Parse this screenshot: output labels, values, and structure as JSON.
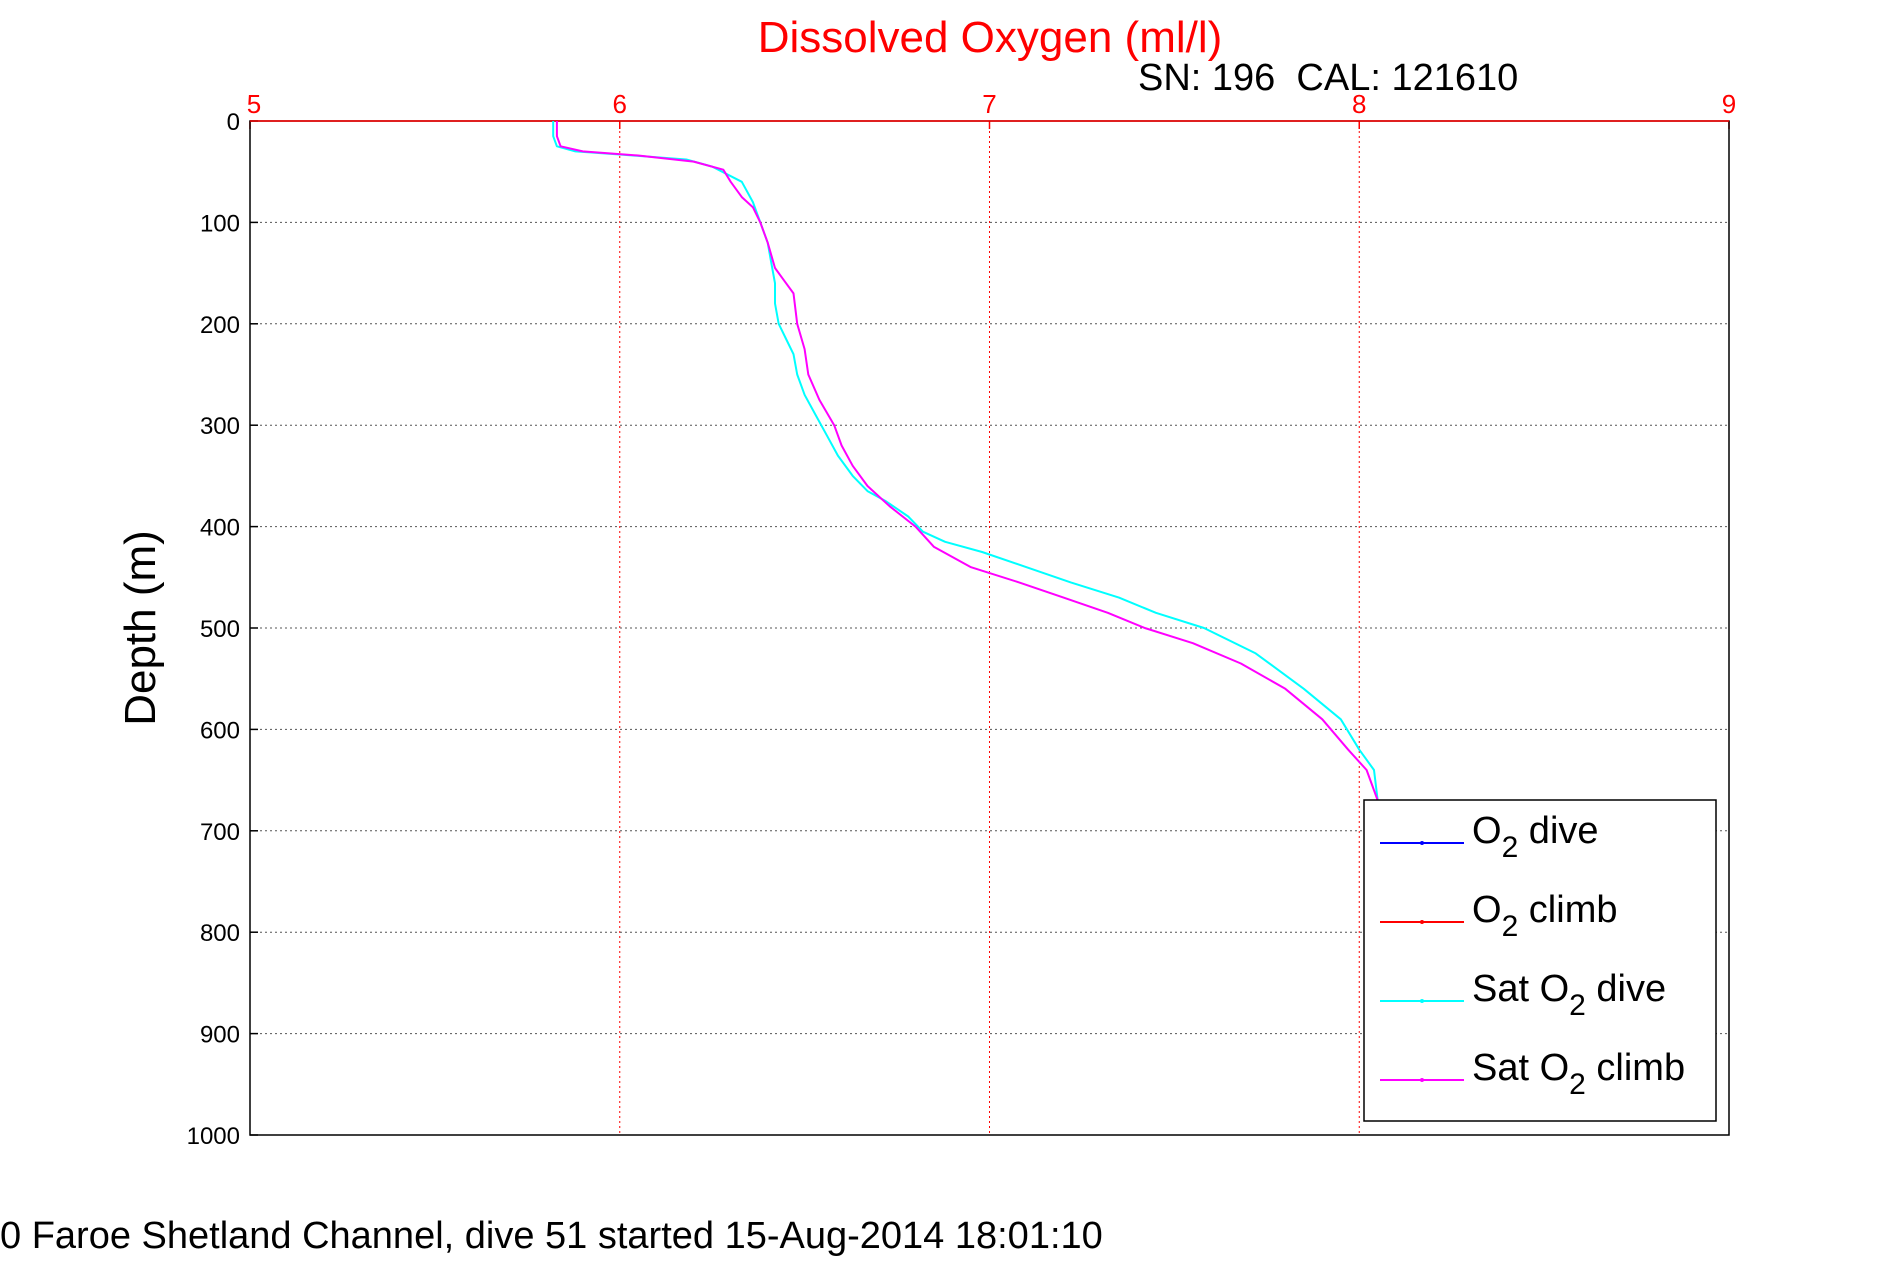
{
  "chart_data": {
    "type": "line",
    "title": "Dissolved Oxygen (ml/l)",
    "subtitle": "SN: 196  CAL: 121610",
    "ylabel": "Depth (m)",
    "xlim": [
      5,
      9
    ],
    "ylim": [
      0,
      1000
    ],
    "y_reversed": true,
    "x_axis_location": "top",
    "xticks": [
      "5",
      "6",
      "7",
      "8",
      "9"
    ],
    "yticks": [
      "0",
      "100",
      "200",
      "300",
      "400",
      "500",
      "600",
      "700",
      "800",
      "900",
      "1000"
    ],
    "grid": true,
    "legend_position": "lower-right",
    "legend": [
      {
        "base": "O",
        "sub": "2",
        "suffix": " dive",
        "prefix": ""
      },
      {
        "base": "O",
        "sub": "2",
        "suffix": " climb",
        "prefix": ""
      },
      {
        "base": "O",
        "sub": "2",
        "suffix": " dive",
        "prefix": "Sat "
      },
      {
        "base": "O",
        "sub": "2",
        "suffix": " climb",
        "prefix": "Sat "
      }
    ],
    "series": [
      {
        "name": "O2 dive",
        "color": "#0000ff",
        "x": [],
        "y": []
      },
      {
        "name": "O2 climb",
        "color": "#ff0000",
        "x": [],
        "y": []
      },
      {
        "name": "Sat O2 dive",
        "color": "#00ffff",
        "x": [
          5.82,
          5.82,
          5.83,
          5.88,
          6.0,
          6.18,
          6.25,
          6.33,
          6.36,
          6.38,
          6.4,
          6.41,
          6.42,
          6.42,
          6.43,
          6.45,
          6.47,
          6.48,
          6.5,
          6.53,
          6.56,
          6.59,
          6.63,
          6.67,
          6.72,
          6.78,
          6.82,
          6.88,
          6.98,
          7.1,
          7.22,
          7.35,
          7.45,
          7.58,
          7.72,
          7.85,
          7.95,
          8.0,
          8.04,
          8.05
        ],
        "y": [
          0,
          15,
          25,
          30,
          33,
          38,
          45,
          60,
          80,
          100,
          120,
          140,
          160,
          180,
          200,
          215,
          230,
          250,
          270,
          290,
          310,
          330,
          350,
          365,
          375,
          390,
          405,
          415,
          425,
          440,
          455,
          470,
          485,
          500,
          525,
          560,
          590,
          620,
          640,
          670
        ]
      },
      {
        "name": "Sat O2 climb",
        "color": "#ff00ff",
        "x": [
          5.83,
          5.83,
          5.84,
          5.9,
          6.05,
          6.2,
          6.28,
          6.3,
          6.33,
          6.36,
          6.38,
          6.4,
          6.42,
          6.44,
          6.47,
          6.48,
          6.5,
          6.51,
          6.54,
          6.58,
          6.6,
          6.63,
          6.67,
          6.73,
          6.8,
          6.85,
          6.95,
          7.08,
          7.2,
          7.32,
          7.42,
          7.55,
          7.68,
          7.8,
          7.9,
          7.97,
          8.02,
          8.05
        ],
        "y": [
          0,
          15,
          25,
          30,
          34,
          40,
          48,
          60,
          75,
          85,
          100,
          120,
          145,
          155,
          170,
          200,
          225,
          250,
          275,
          300,
          320,
          340,
          360,
          380,
          400,
          420,
          440,
          455,
          470,
          485,
          500,
          515,
          535,
          560,
          590,
          620,
          640,
          670
        ]
      }
    ]
  },
  "footer": "0 Faroe Shetland Channel, dive 51 started 15-Aug-2014 18:01:10"
}
